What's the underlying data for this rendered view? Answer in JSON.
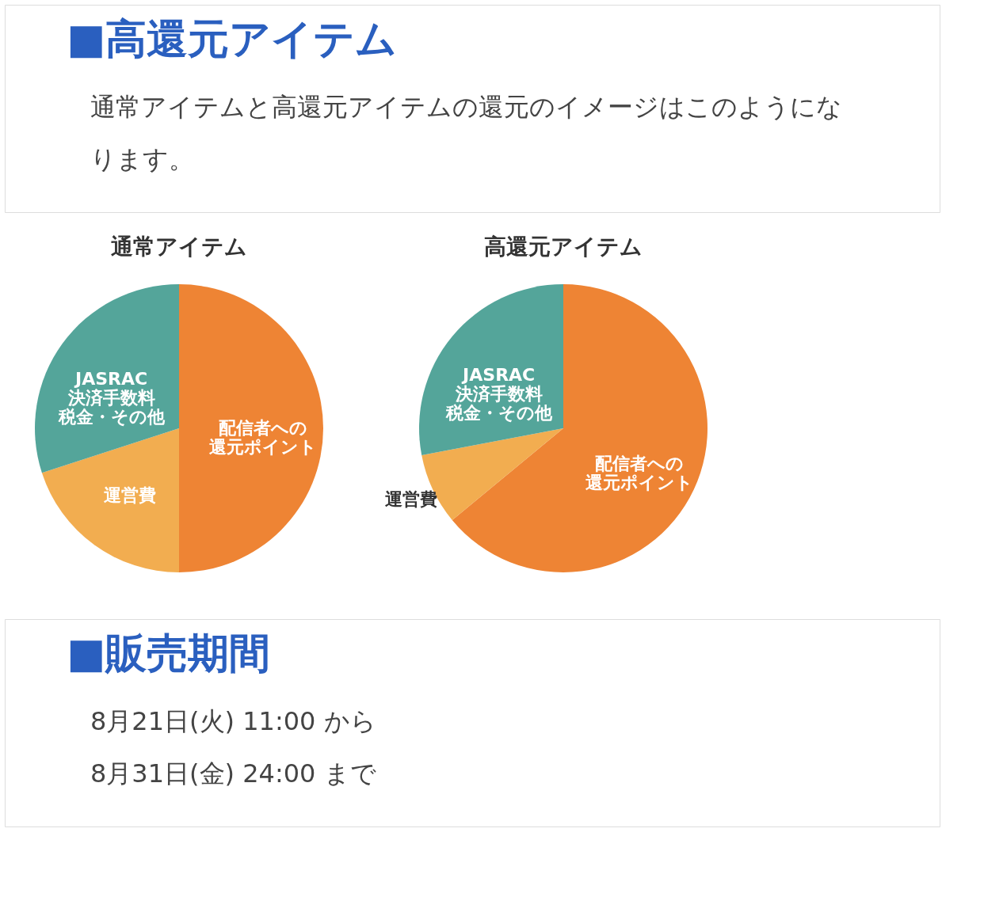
{
  "chart_data": [
    {
      "type": "other",
      "title": "■高還元アイテム",
      "annotations": [
        "通常アイテムと高還元アイテムの還元のイメージはこのようになります。"
      ]
    },
    {
      "type": "pie",
      "title": "通常アイテム",
      "categories": [
        "配信者への還元ポイント",
        "運営費",
        "JASRAC決済手数料税金・その他"
      ],
      "values": [
        50,
        20,
        30
      ],
      "colors": [
        "#ee8434",
        "#f2ad50",
        "#54a59a"
      ]
    },
    {
      "type": "pie",
      "title": "高還元アイテム",
      "categories": [
        "配信者への還元ポイント",
        "運営費",
        "JASRAC決済手数料税金・その他"
      ],
      "values": [
        64,
        8,
        28
      ],
      "colors": [
        "#ee8434",
        "#f2ad50",
        "#54a59a"
      ]
    },
    {
      "type": "other",
      "title": "■販売期間",
      "annotations": [
        "8月21日(火) 11:00 から",
        "8月31日(金) 24:00 まで"
      ]
    }
  ]
}
